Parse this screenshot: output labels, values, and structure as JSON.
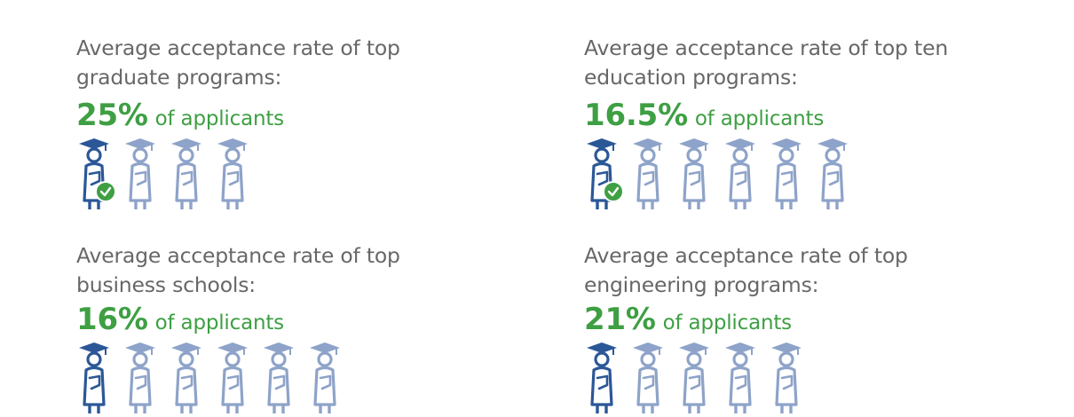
{
  "panels": [
    {
      "heading_line1": "Average acceptance rate of top",
      "heading_line2": "graduate programs:",
      "percent": "25%",
      "suffix": "of applicants",
      "people_total": 4,
      "people_accepted": 1,
      "accepted_badge": "check-circle-icon"
    },
    {
      "heading_line1": "Average acceptance rate of top ten",
      "heading_line2": "education programs:",
      "percent": "16.5%",
      "suffix": "of applicants",
      "people_total": 6,
      "people_accepted": 1,
      "accepted_badge": "check-circle-icon"
    },
    {
      "heading_line1": "Average acceptance rate of top",
      "heading_line2": "business schools:",
      "percent": "16%",
      "suffix": "of applicants",
      "people_total": 6,
      "people_accepted": 1
    },
    {
      "heading_line1": "Average acceptance rate of top",
      "heading_line2": "engineering programs:",
      "percent": "21%",
      "suffix": "of applicants",
      "people_total": 5,
      "people_accepted": 1
    }
  ],
  "colors": {
    "heading": "#676767",
    "accent_green": "#3e9f43",
    "icon_muted": "#8ea3c9",
    "icon_highlight": "#2b5797"
  },
  "icon_name": "graduate-person-icon"
}
